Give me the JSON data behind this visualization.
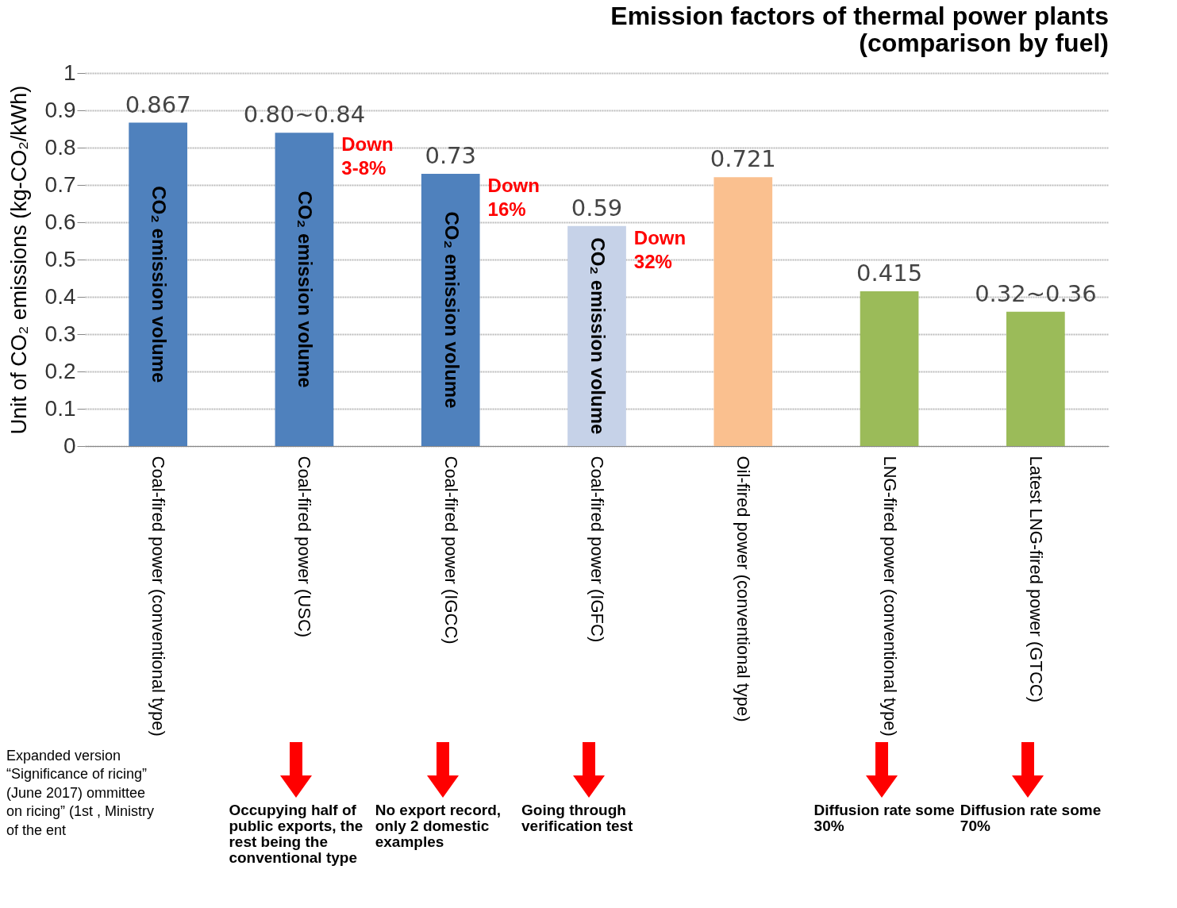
{
  "chart_data": {
    "type": "bar",
    "title": "Emission factors of thermal power plants (comparison by fuel)",
    "ylabel": "Unit of CO₂ emissions (kg-CO₂/kWh)",
    "categories": [
      "Coal-fired power (conventional type)",
      "Coal-fired power (USC)",
      "Coal-fired power (IGCC)",
      "Coal-fired power (IGFC)",
      "Oil-fired power (conventional type)",
      "LNG-fired power (conventional type)",
      "Latest LNG-fired power (GTCC)"
    ],
    "values": [
      0.867,
      0.84,
      0.73,
      0.59,
      0.721,
      0.415,
      0.36
    ],
    "value_labels": [
      "0.867",
      "0.80~0.84",
      "0.73",
      "0.59",
      "0.721",
      "0.415",
      "0.32~0.36"
    ],
    "colors": [
      "#4f81bd",
      "#4f81bd",
      "#4f81bd",
      "#c6d2e8",
      "#fac08f",
      "#9bbb59",
      "#9bbb59"
    ],
    "ylim": [
      0,
      1
    ],
    "yticks": [
      0,
      0.1,
      0.2,
      0.3,
      0.4,
      0.5,
      0.6,
      0.7,
      0.8,
      0.9,
      1
    ],
    "grid": "y",
    "annotations": [
      {
        "text": "Down 3-8%",
        "x": "Coal-fired power (USC)",
        "y": 0.84
      },
      {
        "text": "Down 16%",
        "x": "Coal-fired power (IGCC)",
        "y": 0.73
      },
      {
        "text": "Down 32%",
        "x": "Coal-fired power (IGFC)",
        "y": 0.59
      },
      "CO₂ emission volume",
      "CO₂ emission volume",
      "CO₂ emission volume",
      "CO₂ emission volume",
      "Occupying half of public exports, the rest being the conventional type",
      "No export record, only 2 domestic examples",
      "Going through verification test",
      "Diffusion rate some 30%",
      "Diffusion rate some 70%",
      "Expanded version “Significance of ricing” (June 2017) ommittee on ricing” (1st , Ministry of the ent"
    ]
  }
}
